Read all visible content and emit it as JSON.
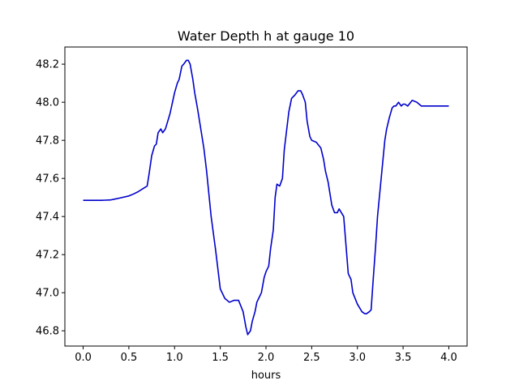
{
  "chart_data": {
    "type": "line",
    "title": "Water Depth h at gauge 10",
    "xlabel": "hours",
    "ylabel": "",
    "xlim": [
      -0.2,
      4.2
    ],
    "ylim": [
      46.72,
      48.29
    ],
    "xticks": [
      0.0,
      0.5,
      1.0,
      1.5,
      2.0,
      2.5,
      3.0,
      3.5,
      4.0
    ],
    "xtick_labels": [
      "0.0",
      "0.5",
      "1.0",
      "1.5",
      "2.0",
      "2.5",
      "3.0",
      "3.5",
      "4.0"
    ],
    "yticks": [
      46.8,
      47.0,
      47.2,
      47.4,
      47.6,
      47.8,
      48.0,
      48.2
    ],
    "ytick_labels": [
      "46.8",
      "47.0",
      "47.2",
      "47.4",
      "47.6",
      "47.8",
      "48.0",
      "48.2"
    ],
    "grid": false,
    "series": [
      {
        "color": "#0000cc",
        "x": [
          0.0,
          0.1,
          0.2,
          0.3,
          0.35,
          0.4,
          0.5,
          0.55,
          0.6,
          0.65,
          0.7,
          0.72,
          0.75,
          0.78,
          0.8,
          0.82,
          0.85,
          0.87,
          0.9,
          0.95,
          1.0,
          1.03,
          1.05,
          1.08,
          1.1,
          1.13,
          1.15,
          1.17,
          1.2,
          1.22,
          1.25,
          1.28,
          1.32,
          1.35,
          1.4,
          1.45,
          1.5,
          1.55,
          1.6,
          1.65,
          1.7,
          1.75,
          1.78,
          1.8,
          1.83,
          1.85,
          1.88,
          1.9,
          1.92,
          1.95,
          1.98,
          2.0,
          2.03,
          2.05,
          2.08,
          2.1,
          2.12,
          2.15,
          2.18,
          2.2,
          2.25,
          2.28,
          2.3,
          2.32,
          2.35,
          2.38,
          2.4,
          2.43,
          2.45,
          2.48,
          2.5,
          2.55,
          2.6,
          2.63,
          2.65,
          2.68,
          2.7,
          2.72,
          2.75,
          2.78,
          2.8,
          2.85,
          2.88,
          2.9,
          2.93,
          2.95,
          3.0,
          3.05,
          3.08,
          3.1,
          3.13,
          3.15,
          3.17,
          3.2,
          3.22,
          3.25,
          3.28,
          3.3,
          3.32,
          3.35,
          3.38,
          3.4,
          3.42,
          3.45,
          3.48,
          3.5,
          3.52,
          3.55,
          3.6,
          3.65,
          3.7,
          3.75,
          3.8,
          3.83,
          3.85,
          3.88,
          3.9,
          3.93,
          3.95,
          3.98,
          4.0
        ],
        "y": [
          47.485,
          47.485,
          47.485,
          47.487,
          47.492,
          47.497,
          47.508,
          47.518,
          47.53,
          47.545,
          47.56,
          47.62,
          47.72,
          47.77,
          47.78,
          47.84,
          47.86,
          47.84,
          47.86,
          47.94,
          48.05,
          48.1,
          48.12,
          48.19,
          48.2,
          48.22,
          48.22,
          48.2,
          48.12,
          48.05,
          47.97,
          47.88,
          47.76,
          47.64,
          47.4,
          47.22,
          47.02,
          46.97,
          46.95,
          46.96,
          46.96,
          46.9,
          46.82,
          46.78,
          46.8,
          46.85,
          46.9,
          46.95,
          46.97,
          47.0,
          47.08,
          47.11,
          47.14,
          47.23,
          47.33,
          47.5,
          47.57,
          47.56,
          47.6,
          47.75,
          47.95,
          48.02,
          48.03,
          48.04,
          48.06,
          48.06,
          48.04,
          48.0,
          47.9,
          47.82,
          47.8,
          47.79,
          47.76,
          47.7,
          47.64,
          47.58,
          47.52,
          47.46,
          47.42,
          47.42,
          47.44,
          47.4,
          47.22,
          47.1,
          47.07,
          47.0,
          46.94,
          46.9,
          46.89,
          46.89,
          46.9,
          46.91,
          47.05,
          47.25,
          47.4,
          47.55,
          47.7,
          47.8,
          47.86,
          47.92,
          47.97,
          47.98,
          47.98,
          48.0,
          47.98,
          47.99,
          47.99,
          47.98,
          48.01,
          48.0,
          47.98,
          47.98,
          47.98,
          47.98,
          47.98,
          47.98,
          47.98,
          47.98,
          47.98,
          47.98,
          47.98
        ]
      }
    ]
  }
}
